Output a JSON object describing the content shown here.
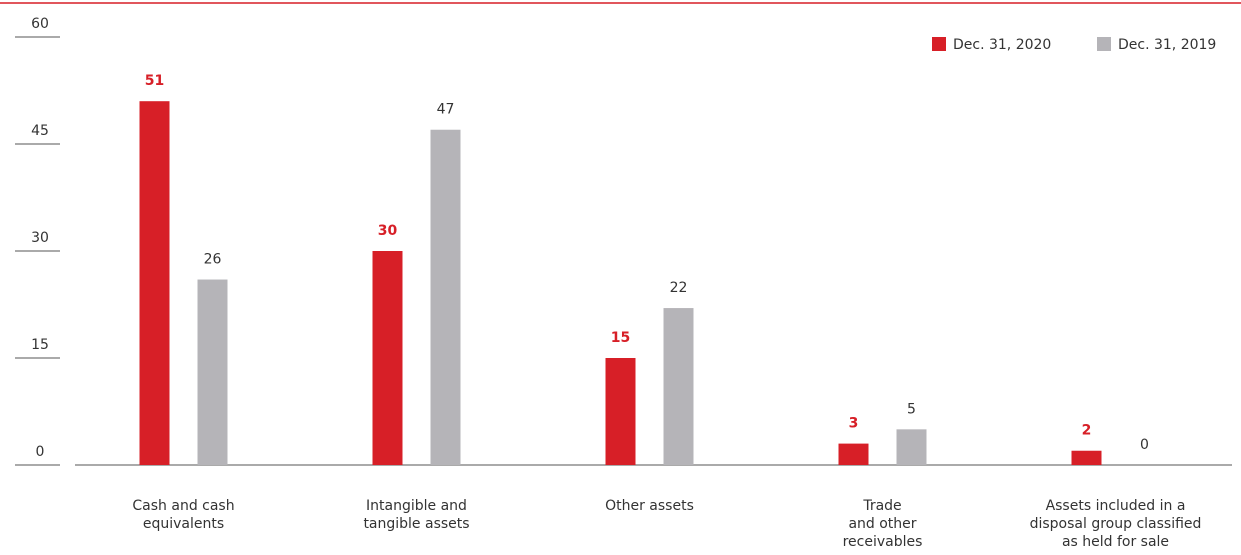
{
  "chart_data": {
    "type": "bar",
    "categories": [
      [
        "Cash and cash",
        "equivalents"
      ],
      [
        "Intangible and",
        "tangible assets"
      ],
      [
        "Other assets"
      ],
      [
        "Trade",
        "and other",
        "receivables"
      ],
      [
        "Assets included in a",
        "disposal group classified",
        "as held for sale"
      ]
    ],
    "series": [
      {
        "name": "Dec. 31, 2020",
        "color": "#d71f27",
        "values": [
          51,
          30,
          15,
          3,
          2
        ]
      },
      {
        "name": "Dec. 31, 2019",
        "color": "#b5b4b8",
        "values": [
          26,
          47,
          22,
          5,
          0
        ]
      }
    ],
    "ylim": [
      0,
      60
    ],
    "yticks": [
      0,
      15,
      30,
      45,
      60
    ],
    "legend": "top-right"
  }
}
